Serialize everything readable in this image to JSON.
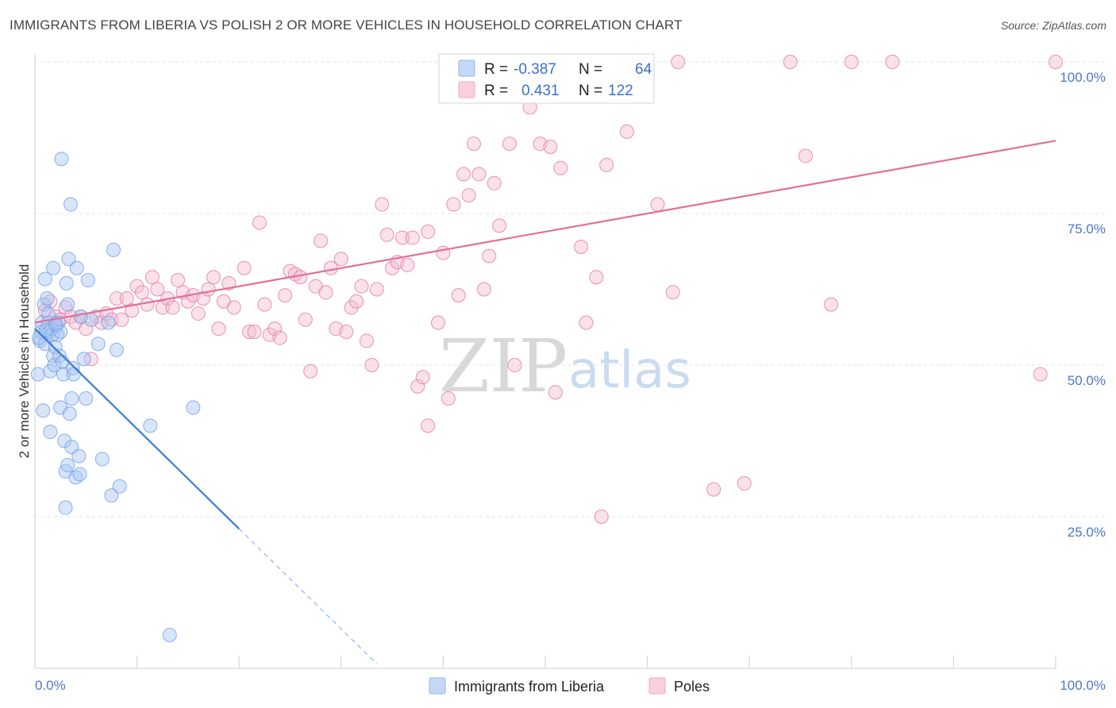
{
  "header": {
    "title": "IMMIGRANTS FROM LIBERIA VS POLISH 2 OR MORE VEHICLES IN HOUSEHOLD CORRELATION CHART",
    "source": "Source: ZipAtlas.com"
  },
  "watermark": {
    "zip": "ZIP",
    "atlas": "atlas"
  },
  "legend_box": {
    "rows": [
      {
        "r_label": "R =",
        "r_value": "-0.387",
        "n_label": "N =",
        "n_value": "64",
        "color": "#8fb4ee"
      },
      {
        "r_label": "R =",
        "r_value": "0.431",
        "n_label": "N =",
        "n_value": "122",
        "color": "#f2a8c2"
      }
    ]
  },
  "bottom_legend": [
    {
      "label": "Immigrants from Liberia",
      "color": "#8fb4ee"
    },
    {
      "label": "Poles",
      "color": "#f2a8c2"
    }
  ],
  "chart_data": {
    "type": "scatter",
    "title": "IMMIGRANTS FROM LIBERIA VS POLISH 2 OR MORE VEHICLES IN HOUSEHOLD CORRELATION CHART",
    "xlabel": "",
    "ylabel": "2 or more Vehicles in Household",
    "xlim": [
      0,
      100
    ],
    "ylim": [
      0,
      100
    ],
    "x_tick_labels": [
      {
        "value": 0,
        "label": "0.0%"
      },
      {
        "value": 100,
        "label": "100.0%"
      }
    ],
    "y_tick_labels": [
      {
        "value": 25,
        "label": "25.0%"
      },
      {
        "value": 50,
        "label": "50.0%"
      },
      {
        "value": 75,
        "label": "75.0%"
      },
      {
        "value": 100,
        "label": "100.0%"
      }
    ],
    "grid": true,
    "legend_position": "bottom",
    "series": [
      {
        "name": "Immigrants from Liberia",
        "color": "#6f9de6",
        "fill": "#a9c6f1",
        "R": -0.387,
        "N": 64,
        "trend": {
          "x0": 0.0,
          "y0": 56.0,
          "x1": 20.0,
          "y1": 23.0,
          "dash_to_x": 33.5
        },
        "points": [
          [
            0.3,
            48.5
          ],
          [
            0.5,
            54.0
          ],
          [
            0.6,
            55.5
          ],
          [
            0.7,
            57.0
          ],
          [
            0.8,
            42.5
          ],
          [
            0.9,
            60.0
          ],
          [
            1.0,
            64.2
          ],
          [
            1.0,
            53.5
          ],
          [
            1.2,
            61.0
          ],
          [
            1.3,
            58.5
          ],
          [
            1.3,
            57.0
          ],
          [
            1.4,
            55.5
          ],
          [
            1.5,
            49.0
          ],
          [
            1.5,
            39.0
          ],
          [
            1.6,
            56.0
          ],
          [
            1.7,
            55.0
          ],
          [
            1.8,
            51.5
          ],
          [
            1.8,
            66.0
          ],
          [
            1.9,
            50.0
          ],
          [
            2.0,
            53.0
          ],
          [
            2.1,
            56.5
          ],
          [
            2.2,
            55.0
          ],
          [
            2.3,
            57.0
          ],
          [
            2.4,
            51.5
          ],
          [
            2.5,
            55.5
          ],
          [
            2.5,
            43.0
          ],
          [
            2.6,
            84.0
          ],
          [
            2.7,
            50.5
          ],
          [
            2.8,
            48.5
          ],
          [
            2.9,
            37.5
          ],
          [
            3.0,
            32.5
          ],
          [
            3.0,
            26.5
          ],
          [
            3.1,
            63.5
          ],
          [
            3.2,
            60.0
          ],
          [
            3.2,
            33.5
          ],
          [
            3.3,
            67.5
          ],
          [
            3.4,
            42.0
          ],
          [
            3.5,
            76.5
          ],
          [
            3.6,
            44.5
          ],
          [
            3.6,
            36.5
          ],
          [
            3.7,
            49.5
          ],
          [
            3.8,
            48.5
          ],
          [
            4.0,
            31.5
          ],
          [
            4.1,
            66.0
          ],
          [
            4.3,
            35.0
          ],
          [
            4.4,
            32.0
          ],
          [
            4.5,
            58.0
          ],
          [
            4.8,
            51.0
          ],
          [
            5.0,
            44.5
          ],
          [
            5.2,
            64.0
          ],
          [
            5.5,
            57.5
          ],
          [
            6.2,
            53.5
          ],
          [
            6.6,
            34.5
          ],
          [
            7.2,
            57.0
          ],
          [
            7.5,
            28.5
          ],
          [
            7.7,
            69.0
          ],
          [
            8.0,
            52.5
          ],
          [
            8.3,
            30.0
          ],
          [
            11.3,
            40.0
          ],
          [
            13.2,
            5.5
          ],
          [
            15.5,
            43.0
          ],
          [
            0.4,
            54.5
          ],
          [
            1.1,
            55.8
          ],
          [
            2.0,
            56.8
          ]
        ]
      },
      {
        "name": "Poles",
        "color": "#e07aa0",
        "fill": "#f5bdd0",
        "R": 0.431,
        "N": 122,
        "trend": {
          "x0": 0.0,
          "y0": 57.0,
          "x1": 100.0,
          "y1": 87.0
        },
        "points": [
          [
            1.0,
            59.0
          ],
          [
            1.5,
            60.5
          ],
          [
            2.0,
            58.0
          ],
          [
            2.5,
            57.5
          ],
          [
            3.0,
            59.5
          ],
          [
            3.5,
            58.0
          ],
          [
            4.0,
            57.0
          ],
          [
            4.5,
            58.0
          ],
          [
            5.0,
            56.0
          ],
          [
            5.5,
            51.0
          ],
          [
            6.0,
            58.0
          ],
          [
            6.5,
            57.0
          ],
          [
            7.0,
            58.5
          ],
          [
            7.5,
            57.5
          ],
          [
            8.0,
            61.0
          ],
          [
            8.5,
            57.5
          ],
          [
            9.0,
            61.0
          ],
          [
            9.5,
            59.0
          ],
          [
            10.0,
            63.0
          ],
          [
            10.5,
            62.0
          ],
          [
            11.0,
            60.0
          ],
          [
            11.5,
            64.5
          ],
          [
            12.0,
            62.5
          ],
          [
            12.5,
            59.5
          ],
          [
            13.0,
            61.0
          ],
          [
            13.5,
            59.5
          ],
          [
            14.0,
            64.0
          ],
          [
            14.5,
            62.0
          ],
          [
            15.0,
            60.5
          ],
          [
            15.5,
            61.5
          ],
          [
            16.0,
            58.5
          ],
          [
            16.5,
            61.0
          ],
          [
            17.0,
            62.5
          ],
          [
            17.5,
            64.5
          ],
          [
            18.0,
            56.0
          ],
          [
            18.5,
            60.5
          ],
          [
            19.0,
            63.5
          ],
          [
            19.5,
            59.5
          ],
          [
            20.5,
            66.0
          ],
          [
            21.0,
            55.5
          ],
          [
            21.5,
            55.5
          ],
          [
            22.0,
            73.5
          ],
          [
            22.5,
            60.0
          ],
          [
            23.0,
            55.0
          ],
          [
            23.5,
            56.0
          ],
          [
            24.0,
            54.5
          ],
          [
            24.5,
            61.5
          ],
          [
            25.0,
            65.5
          ],
          [
            25.5,
            65.0
          ],
          [
            26.0,
            64.5
          ],
          [
            26.5,
            57.5
          ],
          [
            27.0,
            49.0
          ],
          [
            27.5,
            63.0
          ],
          [
            28.0,
            70.5
          ],
          [
            28.5,
            62.0
          ],
          [
            29.0,
            66.0
          ],
          [
            29.5,
            56.0
          ],
          [
            30.0,
            67.5
          ],
          [
            30.5,
            55.5
          ],
          [
            31.0,
            59.5
          ],
          [
            31.5,
            60.5
          ],
          [
            32.0,
            63.0
          ],
          [
            32.5,
            54.0
          ],
          [
            33.0,
            50.0
          ],
          [
            33.5,
            62.5
          ],
          [
            34.0,
            76.5
          ],
          [
            34.5,
            71.5
          ],
          [
            35.0,
            66.0
          ],
          [
            35.5,
            67.0
          ],
          [
            36.0,
            71.0
          ],
          [
            36.5,
            66.5
          ],
          [
            37.0,
            71.0
          ],
          [
            37.5,
            46.5
          ],
          [
            38.0,
            48.0
          ],
          [
            38.5,
            72.0
          ],
          [
            38.5,
            40.0
          ],
          [
            39.5,
            57.0
          ],
          [
            40.0,
            68.5
          ],
          [
            40.5,
            44.5
          ],
          [
            41.0,
            76.5
          ],
          [
            41.5,
            61.5
          ],
          [
            42.0,
            81.5
          ],
          [
            42.5,
            78.0
          ],
          [
            43.0,
            86.5
          ],
          [
            43.5,
            81.5
          ],
          [
            44.0,
            62.5
          ],
          [
            44.5,
            68.0
          ],
          [
            45.0,
            80.0
          ],
          [
            45.5,
            73.0
          ],
          [
            46.0,
            95.0
          ],
          [
            46.5,
            86.5
          ],
          [
            47.0,
            50.0
          ],
          [
            48.0,
            100.0
          ],
          [
            48.5,
            92.5
          ],
          [
            49.5,
            86.5
          ],
          [
            50.5,
            86.0
          ],
          [
            51.0,
            45.5
          ],
          [
            51.5,
            82.5
          ],
          [
            52.0,
            100.0
          ],
          [
            53.5,
            69.5
          ],
          [
            54.0,
            57.0
          ],
          [
            55.0,
            64.5
          ],
          [
            55.5,
            25.0
          ],
          [
            56.0,
            83.0
          ],
          [
            58.0,
            88.5
          ],
          [
            61.0,
            76.5
          ],
          [
            62.5,
            62.0
          ],
          [
            63.0,
            100.0
          ],
          [
            66.5,
            29.5
          ],
          [
            69.5,
            30.5
          ],
          [
            74.0,
            100.0
          ],
          [
            75.5,
            84.5
          ],
          [
            78.0,
            60.0
          ],
          [
            80.0,
            100.0
          ],
          [
            84.0,
            100.0
          ],
          [
            98.5,
            48.5
          ],
          [
            100.0,
            100.0
          ]
        ]
      }
    ]
  }
}
